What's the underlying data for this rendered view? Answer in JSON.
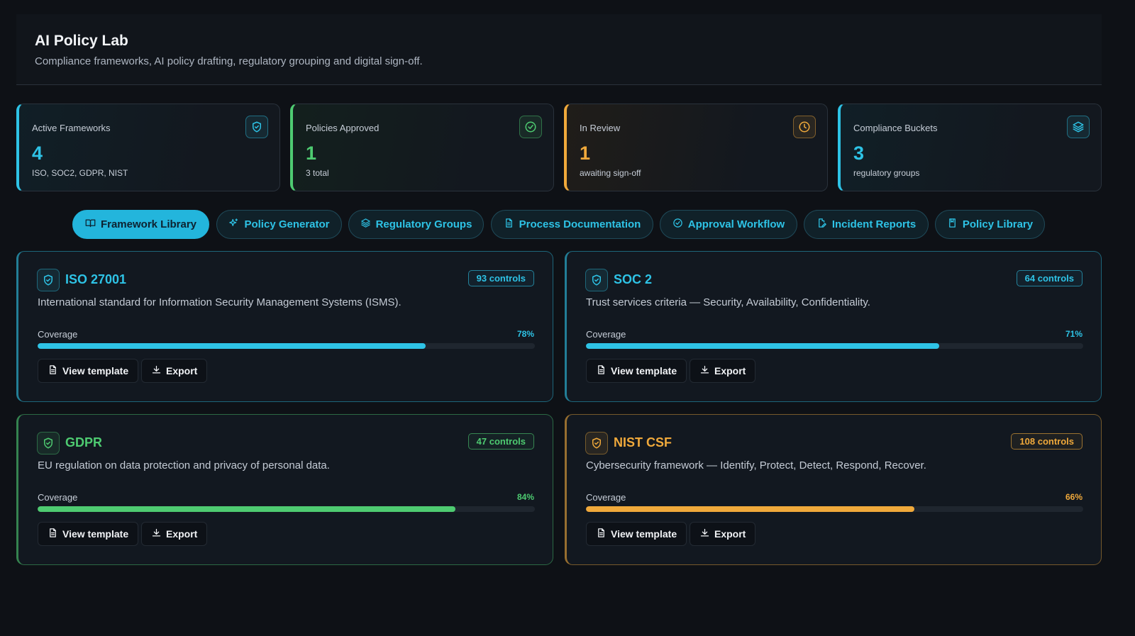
{
  "header": {
    "title": "AI Policy Lab",
    "subtitle": "Compliance frameworks, AI policy drafting, regulatory grouping and digital sign-off."
  },
  "stats": [
    {
      "label": "Active Frameworks",
      "value": "4",
      "sub": "ISO, SOC2, GDPR, NIST",
      "color": "#2ec3e6",
      "icon": "shield-icon"
    },
    {
      "label": "Policies Approved",
      "value": "1",
      "sub": "3 total",
      "color": "#4ecb71",
      "icon": "check-circle-icon"
    },
    {
      "label": "In Review",
      "value": "1",
      "sub": "awaiting sign-off",
      "color": "#f0a93b",
      "icon": "clock-icon"
    },
    {
      "label": "Compliance Buckets",
      "value": "3",
      "sub": "regulatory groups",
      "color": "#2ec3e6",
      "icon": "layers-icon"
    }
  ],
  "tabs": [
    {
      "label": "Framework Library",
      "icon": "book-icon",
      "active": true
    },
    {
      "label": "Policy Generator",
      "icon": "sparkles-icon",
      "active": false
    },
    {
      "label": "Regulatory Groups",
      "icon": "layers-icon",
      "active": false
    },
    {
      "label": "Process Documentation",
      "icon": "document-icon",
      "active": false
    },
    {
      "label": "Approval Workflow",
      "icon": "check-circle-icon",
      "active": false
    },
    {
      "label": "Incident Reports",
      "icon": "file-edit-icon",
      "active": false
    },
    {
      "label": "Policy Library",
      "icon": "bookmark-icon",
      "active": false
    }
  ],
  "frameworks": [
    {
      "name": "ISO 27001",
      "controls": "93 controls",
      "description": "International standard for Information Security Management Systems (ISMS).",
      "coverage_label": "Coverage",
      "coverage": 78,
      "coverage_text": "78%",
      "color": "#2ec3e6",
      "view_label": "View template",
      "export_label": "Export"
    },
    {
      "name": "SOC 2",
      "controls": "64 controls",
      "description": "Trust services criteria — Security, Availability, Confidentiality.",
      "coverage_label": "Coverage",
      "coverage": 71,
      "coverage_text": "71%",
      "color": "#2ec3e6",
      "view_label": "View template",
      "export_label": "Export"
    },
    {
      "name": "GDPR",
      "controls": "47 controls",
      "description": "EU regulation on data protection and privacy of personal data.",
      "coverage_label": "Coverage",
      "coverage": 84,
      "coverage_text": "84%",
      "color": "#4ecb71",
      "view_label": "View template",
      "export_label": "Export"
    },
    {
      "name": "NIST CSF",
      "controls": "108 controls",
      "description": "Cybersecurity framework — Identify, Protect, Detect, Respond, Recover.",
      "coverage_label": "Coverage",
      "coverage": 66,
      "coverage_text": "66%",
      "color": "#f0a93b",
      "view_label": "View template",
      "export_label": "Export"
    }
  ]
}
